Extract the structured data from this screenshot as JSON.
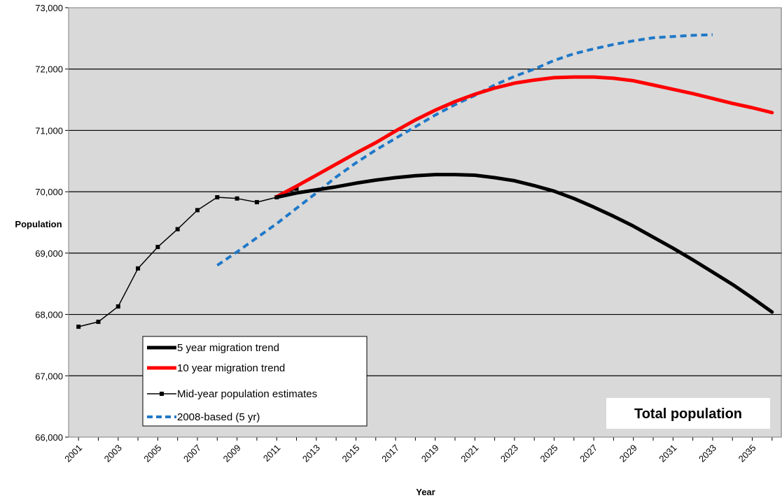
{
  "chart_data": {
    "type": "line",
    "title": "",
    "annotation": "Total population",
    "xlabel": "Year",
    "ylabel": "Population",
    "xlim": [
      2001,
      2036
    ],
    "ylim": [
      66000,
      73000
    ],
    "y_ticks": [
      66000,
      67000,
      68000,
      69000,
      70000,
      71000,
      72000,
      73000
    ],
    "y_tick_labels": [
      "66,000",
      "67,000",
      "68,000",
      "69,000",
      "70,000",
      "71,000",
      "72,000",
      "73,000"
    ],
    "x_ticks": [
      2001,
      2003,
      2005,
      2007,
      2009,
      2011,
      2013,
      2015,
      2017,
      2019,
      2021,
      2023,
      2025,
      2027,
      2029,
      2031,
      2033,
      2035
    ],
    "x_tick_labels": [
      "2001",
      "2003",
      "2005",
      "2007",
      "2009",
      "2011",
      "2013",
      "2015",
      "2017",
      "2019",
      "2021",
      "2023",
      "2025",
      "2027",
      "2029",
      "2031",
      "2033",
      "2035"
    ],
    "grid": "horizontal",
    "legend_position": "bottom-left",
    "plot_background": "#d9d9d9",
    "series": [
      {
        "name": "5 year migration trend",
        "color": "#000000",
        "style": "solid-thick",
        "x": [
          2011,
          2012,
          2013,
          2014,
          2015,
          2016,
          2017,
          2018,
          2019,
          2020,
          2021,
          2022,
          2023,
          2024,
          2025,
          2026,
          2027,
          2028,
          2029,
          2030,
          2031,
          2032,
          2033,
          2034,
          2035,
          2036
        ],
        "y": [
          69910,
          69980,
          70030,
          70080,
          70140,
          70190,
          70230,
          70260,
          70280,
          70280,
          70270,
          70230,
          70180,
          70100,
          70010,
          69890,
          69750,
          69600,
          69440,
          69260,
          69080,
          68890,
          68690,
          68490,
          68270,
          68040
        ]
      },
      {
        "name": "10 year migration trend",
        "color": "#ff0000",
        "style": "solid-thick",
        "x": [
          2011,
          2012,
          2013,
          2014,
          2015,
          2016,
          2017,
          2018,
          2019,
          2020,
          2021,
          2022,
          2023,
          2024,
          2025,
          2026,
          2027,
          2028,
          2029,
          2030,
          2031,
          2032,
          2033,
          2034,
          2035,
          2036
        ],
        "y": [
          69920,
          70090,
          70270,
          70450,
          70630,
          70800,
          70990,
          71170,
          71330,
          71470,
          71590,
          71690,
          71770,
          71820,
          71860,
          71870,
          71870,
          71850,
          71810,
          71740,
          71670,
          71600,
          71520,
          71440,
          71370,
          71290
        ]
      },
      {
        "name": "Mid-year population estimates",
        "color": "#000000",
        "style": "thin-markers",
        "x": [
          2001,
          2002,
          2003,
          2004,
          2005,
          2006,
          2007,
          2008,
          2009,
          2010,
          2011,
          2012
        ],
        "y": [
          67800,
          67880,
          68130,
          68750,
          69100,
          69390,
          69700,
          69910,
          69890,
          69830,
          69910,
          70050
        ]
      },
      {
        "name": "2008-based (5 yr)",
        "color": "#1f78c8",
        "style": "dashed",
        "x": [
          2008,
          2009,
          2010,
          2011,
          2012,
          2013,
          2014,
          2015,
          2016,
          2017,
          2018,
          2019,
          2020,
          2021,
          2022,
          2023,
          2024,
          2025,
          2026,
          2027,
          2028,
          2029,
          2030,
          2031,
          2032,
          2033
        ],
        "y": [
          68800,
          69020,
          69250,
          69480,
          69730,
          69980,
          70240,
          70470,
          70680,
          70870,
          71060,
          71250,
          71420,
          71570,
          71740,
          71880,
          72000,
          72140,
          72250,
          72330,
          72400,
          72460,
          72510,
          72530,
          72550,
          72560
        ]
      }
    ]
  }
}
